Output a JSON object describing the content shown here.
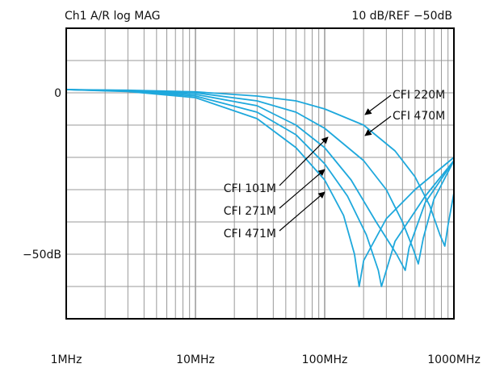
{
  "chart_data": {
    "type": "line",
    "header_left": "Ch1 A/R log MAG",
    "header_right": "10 dB/REF −50dB",
    "x_scale": "log",
    "xlim_hz": [
      1000000,
      1000000000
    ],
    "ylim_db": [
      -70,
      20
    ],
    "x_tick_labels": [
      {
        "value": 1000000,
        "label": "1MHz"
      },
      {
        "value": 10000000,
        "label": "10MHz"
      },
      {
        "value": 100000000,
        "label": "100MHz"
      },
      {
        "value": 1000000000,
        "label": "1000MHz"
      }
    ],
    "y_tick_labels": [
      {
        "value": 0,
        "label": "0"
      },
      {
        "value": -50,
        "label": "−50dB"
      }
    ],
    "grid": true,
    "line_color": "#1ea8dc",
    "series": [
      {
        "name": "CFI 471M",
        "x_hz": [
          1000000,
          3000000,
          10000000,
          30000000,
          60000000,
          100000000,
          140000000,
          170000000,
          185000000,
          200000000,
          300000000,
          500000000,
          1000000000
        ],
        "y_db": [
          1,
          0.4,
          -1.5,
          -8,
          -17,
          -27,
          -38,
          -50,
          -60,
          -52,
          -39,
          -30,
          -20
        ]
      },
      {
        "name": "CFI 271M",
        "x_hz": [
          1000000,
          3000000,
          10000000,
          30000000,
          60000000,
          100000000,
          150000000,
          210000000,
          260000000,
          275000000,
          350000000,
          600000000,
          1000000000
        ],
        "y_db": [
          1,
          0.5,
          -1,
          -6,
          -13,
          -22,
          -32,
          -44,
          -55,
          -60,
          -46,
          -32,
          -21
        ]
      },
      {
        "name": "CFI 101M",
        "x_hz": [
          1000000,
          3000000,
          10000000,
          30000000,
          60000000,
          100000000,
          160000000,
          250000000,
          360000000,
          420000000,
          450000000,
          600000000,
          1000000000
        ],
        "y_db": [
          1,
          0.6,
          -0.5,
          -4,
          -10,
          -17,
          -27,
          -40,
          -50,
          -55,
          -48,
          -34,
          -21
        ]
      },
      {
        "name": "CFI 470M",
        "x_hz": [
          1000000,
          3000000,
          10000000,
          30000000,
          60000000,
          100000000,
          200000000,
          300000000,
          400000000,
          480000000,
          530000000,
          580000000,
          700000000,
          1000000000
        ],
        "y_db": [
          1,
          0.7,
          0,
          -2.5,
          -6,
          -11,
          -21,
          -30,
          -40,
          -48,
          -53,
          -45,
          -33,
          -21
        ]
      },
      {
        "name": "CFI 220M",
        "x_hz": [
          1000000,
          3000000,
          10000000,
          30000000,
          60000000,
          100000000,
          200000000,
          350000000,
          500000000,
          650000000,
          780000000,
          850000000,
          900000000,
          1000000000
        ],
        "y_db": [
          1,
          0.8,
          0.3,
          -1,
          -2.5,
          -5,
          -10,
          -18,
          -26,
          -35,
          -44,
          -47.5,
          -41,
          -31
        ]
      }
    ],
    "annotations": [
      {
        "series": "CFI 220M",
        "text": "CFI 220M"
      },
      {
        "series": "CFI 470M",
        "text": "CFI 470M"
      },
      {
        "series": "CFI 101M",
        "text": "CFI 101M"
      },
      {
        "series": "CFI 271M",
        "text": "CFI 271M"
      },
      {
        "series": "CFI 471M",
        "text": "CFI 471M"
      }
    ]
  }
}
